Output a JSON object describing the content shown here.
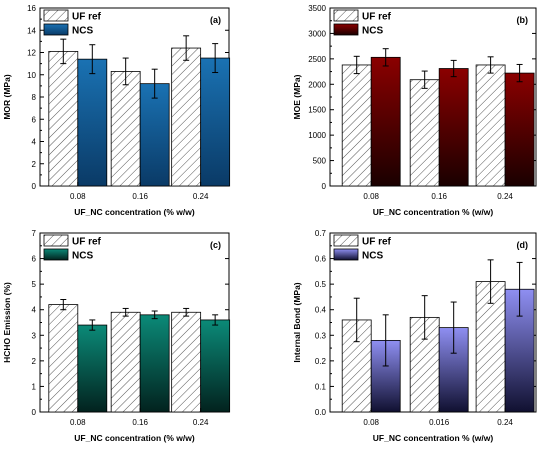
{
  "chart_data": [
    {
      "type": "bar",
      "panel_label": "(a)",
      "categories": [
        "0.08",
        "0.16",
        "0.24"
      ],
      "series": [
        {
          "name": "UF ref",
          "values": [
            12.1,
            10.3,
            12.4
          ],
          "errors": [
            1.1,
            1.2,
            1.1
          ]
        },
        {
          "name": "NCS",
          "values": [
            11.4,
            9.2,
            11.5
          ],
          "errors": [
            1.3,
            1.3,
            1.3
          ]
        }
      ],
      "xlabel": "UF_NC concentration (% w/w)",
      "ylabel": "MOR (MPa)",
      "ylim": [
        0,
        16
      ],
      "yticks": [
        "0",
        "2",
        "4",
        "6",
        "8",
        "10",
        "12",
        "14",
        "16"
      ],
      "legend_position": "top-left",
      "colors": {
        "ref_hatch": "#555555",
        "ncs_top": "#1a72b3",
        "ncs_bottom": "#0a3a66"
      }
    },
    {
      "type": "bar",
      "panel_label": "(b)",
      "categories": [
        "0.08",
        "0.16",
        "0.24"
      ],
      "series": [
        {
          "name": "UF ref",
          "values": [
            2380,
            2090,
            2380
          ],
          "errors": [
            170,
            170,
            160
          ]
        },
        {
          "name": "NCS",
          "values": [
            2530,
            2310,
            2220
          ],
          "errors": [
            170,
            160,
            170
          ]
        }
      ],
      "xlabel": "UF_NC concentration % (w/w)",
      "ylabel": "MOE (MPa)",
      "ylim": [
        0,
        3500
      ],
      "yticks": [
        "0",
        "500",
        "1000",
        "1500",
        "2000",
        "2500",
        "3000",
        "3500"
      ],
      "legend_position": "top-left",
      "colors": {
        "ref_hatch": "#555555",
        "ncs_top": "#8b0000",
        "ncs_bottom": "#1a0000"
      }
    },
    {
      "type": "bar",
      "panel_label": "(c)",
      "categories": [
        "0.08",
        "0.16",
        "0.24"
      ],
      "series": [
        {
          "name": "UF ref",
          "values": [
            4.2,
            3.9,
            3.9
          ],
          "errors": [
            0.2,
            0.15,
            0.15
          ]
        },
        {
          "name": "NCS",
          "values": [
            3.4,
            3.8,
            3.6
          ],
          "errors": [
            0.2,
            0.15,
            0.2
          ]
        }
      ],
      "xlabel": "UF_NC concentration (% w/w)",
      "ylabel": "HCHO Emission (%)",
      "ylim": [
        0,
        7
      ],
      "yticks": [
        "0",
        "1",
        "2",
        "3",
        "4",
        "5",
        "6",
        "7"
      ],
      "legend_position": "top-left",
      "colors": {
        "ref_hatch": "#555555",
        "ncs_top": "#0b8a78",
        "ncs_bottom": "#02221e"
      }
    },
    {
      "type": "bar",
      "panel_label": "(d)",
      "categories": [
        "0.08",
        "0.016",
        "0.24"
      ],
      "series": [
        {
          "name": "UF ref",
          "values": [
            0.36,
            0.37,
            0.51
          ],
          "errors": [
            0.085,
            0.085,
            0.085
          ]
        },
        {
          "name": "NCS",
          "values": [
            0.28,
            0.33,
            0.48
          ],
          "errors": [
            0.1,
            0.1,
            0.105
          ]
        }
      ],
      "xlabel": "UF_NC concentration % (w/w)",
      "ylabel": "Internal Bond (MPa)",
      "ylim": [
        0,
        0.7
      ],
      "yticks": [
        "0.0",
        "0.1",
        "0.2",
        "0.3",
        "0.4",
        "0.5",
        "0.6",
        "0.7"
      ],
      "legend_position": "top-left",
      "colors": {
        "ref_hatch": "#555555",
        "ncs_top": "#8f8ff2",
        "ncs_bottom": "#101030"
      }
    }
  ]
}
